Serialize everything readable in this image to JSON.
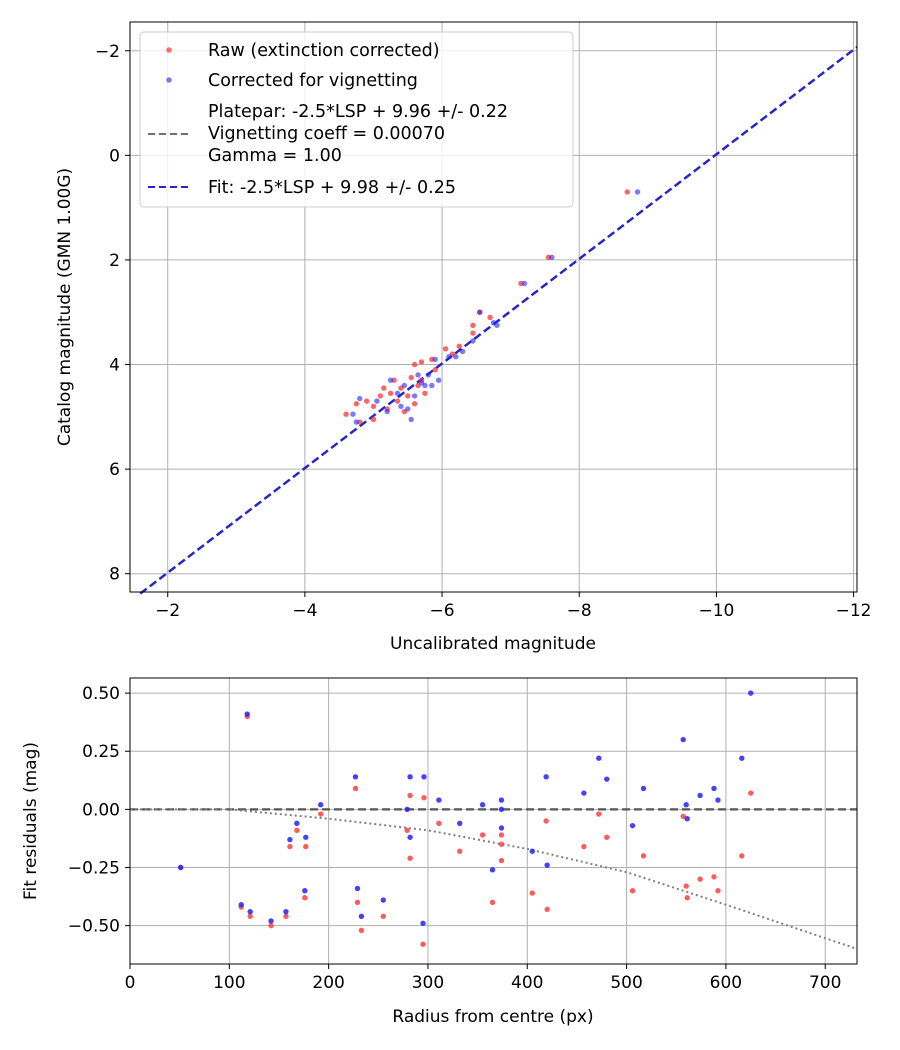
{
  "chart_data": [
    {
      "type": "scatter",
      "xlabel": "Uncalibrated magnitude",
      "ylabel": "Catalog magnitude (GMN 1.00G)",
      "xlim": [
        -1.45,
        -12.05
      ],
      "ylim": [
        8.35,
        -2.55
      ],
      "x_ticks": [
        -2,
        -4,
        -6,
        -8,
        -10,
        -12
      ],
      "x_tick_labels": [
        "−2",
        "−4",
        "−6",
        "−8",
        "−10",
        "−12"
      ],
      "y_ticks": [
        -2,
        0,
        2,
        4,
        6,
        8
      ],
      "y_tick_labels": [
        "−2",
        "0",
        "2",
        "4",
        "6",
        "8"
      ],
      "grid": true,
      "legend_position": "top-left",
      "legend": {
        "raw": "Raw (extinction corrected)",
        "corrected": "Corrected for vignetting",
        "platepar_lines": [
          "Platepar: -2.5*LSP + 9.96 +/- 0.22",
          "Vignetting coeff = 0.00070",
          "Gamma = 1.00"
        ],
        "fit": "Fit: -2.5*LSP + 9.98 +/- 0.25"
      },
      "colors": {
        "raw": "#ff3333",
        "corrected": "#2222ff",
        "fit": "#2525cc",
        "platepar": "#707070"
      },
      "fit_line": {
        "slope": 1.0,
        "intercept": 9.98,
        "x_range": [
          -1.6,
          -12.05
        ]
      },
      "series": [
        {
          "name": "Raw (extinction corrected)",
          "points": [
            [
              -4.6,
              4.95
            ],
            [
              -4.75,
              4.75
            ],
            [
              -4.8,
              5.1
            ],
            [
              -4.9,
              4.7
            ],
            [
              -5.0,
              4.8
            ],
            [
              -5.0,
              5.05
            ],
            [
              -5.1,
              4.6
            ],
            [
              -5.15,
              4.45
            ],
            [
              -5.2,
              4.85
            ],
            [
              -5.25,
              4.55
            ],
            [
              -5.3,
              4.3
            ],
            [
              -5.35,
              4.7
            ],
            [
              -5.4,
              4.45
            ],
            [
              -5.45,
              4.9
            ],
            [
              -5.5,
              4.6
            ],
            [
              -5.55,
              4.25
            ],
            [
              -5.6,
              4.75
            ],
            [
              -5.6,
              4.0
            ],
            [
              -5.65,
              4.4
            ],
            [
              -5.7,
              3.95
            ],
            [
              -5.7,
              4.3
            ],
            [
              -5.75,
              4.55
            ],
            [
              -5.85,
              3.9
            ],
            [
              -5.9,
              4.1
            ],
            [
              -6.05,
              3.7
            ],
            [
              -6.15,
              3.8
            ],
            [
              -6.25,
              3.65
            ],
            [
              -6.45,
              3.4
            ],
            [
              -6.45,
              3.25
            ],
            [
              -6.55,
              3.0
            ],
            [
              -6.7,
              3.1
            ],
            [
              -7.15,
              2.45
            ],
            [
              -7.55,
              1.95
            ],
            [
              -8.7,
              0.7
            ]
          ]
        },
        {
          "name": "Corrected for vignetting",
          "points": [
            [
              -4.7,
              4.95
            ],
            [
              -4.75,
              5.1
            ],
            [
              -4.8,
              4.65
            ],
            [
              -5.05,
              4.7
            ],
            [
              -5.2,
              4.9
            ],
            [
              -5.25,
              4.3
            ],
            [
              -5.35,
              4.55
            ],
            [
              -5.4,
              4.8
            ],
            [
              -5.45,
              4.4
            ],
            [
              -5.5,
              4.85
            ],
            [
              -5.55,
              5.05
            ],
            [
              -5.6,
              4.6
            ],
            [
              -5.65,
              4.2
            ],
            [
              -5.7,
              4.35
            ],
            [
              -5.75,
              4.4
            ],
            [
              -5.8,
              4.2
            ],
            [
              -5.85,
              4.4
            ],
            [
              -5.9,
              3.9
            ],
            [
              -5.95,
              4.3
            ],
            [
              -6.1,
              3.85
            ],
            [
              -6.2,
              3.85
            ],
            [
              -6.3,
              3.75
            ],
            [
              -6.45,
              3.55
            ],
            [
              -6.55,
              3.0
            ],
            [
              -6.75,
              3.2
            ],
            [
              -6.8,
              3.25
            ],
            [
              -7.2,
              2.45
            ],
            [
              -7.6,
              1.95
            ],
            [
              -8.85,
              0.7
            ]
          ]
        }
      ]
    },
    {
      "type": "scatter",
      "xlabel": "Radius from centre (px)",
      "ylabel": "Fit residuals (mag)",
      "xlim": [
        0,
        732
      ],
      "ylim": [
        -0.665,
        0.565
      ],
      "x_ticks": [
        0,
        100,
        200,
        300,
        400,
        500,
        600,
        700
      ],
      "x_tick_labels": [
        "0",
        "100",
        "200",
        "300",
        "400",
        "500",
        "600",
        "700"
      ],
      "y_ticks": [
        -0.5,
        -0.25,
        0,
        0.25,
        0.5
      ],
      "y_tick_labels": [
        "−0.50",
        "−0.25",
        "0.00",
        "0.25",
        "0.50"
      ],
      "grid": true,
      "zero_line": 0,
      "vignetting_curve": {
        "description": "dotted gray curve",
        "points": [
          [
            0,
            0
          ],
          [
            100,
            0.0
          ],
          [
            200,
            -0.04
          ],
          [
            300,
            -0.09
          ],
          [
            400,
            -0.17
          ],
          [
            500,
            -0.27
          ],
          [
            600,
            -0.41
          ],
          [
            732,
            -0.6
          ]
        ]
      },
      "series": [
        {
          "name": "Raw",
          "points": [
            [
              51,
              -0.25
            ],
            [
              112,
              -0.42
            ],
            [
              118,
              0.4
            ],
            [
              121,
              -0.46
            ],
            [
              142,
              -0.5
            ],
            [
              157,
              -0.46
            ],
            [
              161,
              -0.16
            ],
            [
              168,
              -0.09
            ],
            [
              176,
              -0.38
            ],
            [
              177,
              -0.16
            ],
            [
              192,
              -0.02
            ],
            [
              227,
              0.09
            ],
            [
              229,
              -0.4
            ],
            [
              233,
              -0.52
            ],
            [
              255,
              -0.46
            ],
            [
              279,
              -0.09
            ],
            [
              282,
              0.06
            ],
            [
              282,
              -0.21
            ],
            [
              295,
              -0.58
            ],
            [
              296,
              0.05
            ],
            [
              311,
              -0.06
            ],
            [
              332,
              -0.18
            ],
            [
              355,
              -0.11
            ],
            [
              365,
              -0.4
            ],
            [
              374,
              -0.22
            ],
            [
              374,
              -0.15
            ],
            [
              374,
              -0.11
            ],
            [
              405,
              -0.36
            ],
            [
              419,
              -0.05
            ],
            [
              420,
              -0.43
            ],
            [
              457,
              -0.16
            ],
            [
              472,
              -0.02
            ],
            [
              480,
              -0.12
            ],
            [
              506,
              -0.35
            ],
            [
              517,
              -0.2
            ],
            [
              557,
              -0.03
            ],
            [
              560,
              -0.33
            ],
            [
              561,
              -0.38
            ],
            [
              574,
              -0.3
            ],
            [
              588,
              -0.29
            ],
            [
              592,
              -0.35
            ],
            [
              616,
              -0.2
            ],
            [
              625,
              0.07
            ]
          ]
        },
        {
          "name": "Corrected",
          "points": [
            [
              51,
              -0.25
            ],
            [
              112,
              -0.41
            ],
            [
              118,
              0.41
            ],
            [
              121,
              -0.44
            ],
            [
              142,
              -0.48
            ],
            [
              157,
              -0.44
            ],
            [
              161,
              -0.13
            ],
            [
              168,
              -0.06
            ],
            [
              176,
              -0.35
            ],
            [
              177,
              -0.12
            ],
            [
              192,
              0.02
            ],
            [
              227,
              0.14
            ],
            [
              229,
              -0.34
            ],
            [
              233,
              -0.46
            ],
            [
              255,
              -0.39
            ],
            [
              279,
              0.0
            ],
            [
              282,
              0.14
            ],
            [
              282,
              -0.12
            ],
            [
              295,
              -0.49
            ],
            [
              296,
              0.14
            ],
            [
              311,
              0.04
            ],
            [
              332,
              -0.06
            ],
            [
              355,
              0.02
            ],
            [
              365,
              -0.26
            ],
            [
              374,
              0.04
            ],
            [
              374,
              0.0
            ],
            [
              374,
              -0.08
            ],
            [
              405,
              -0.18
            ],
            [
              419,
              0.14
            ],
            [
              420,
              -0.24
            ],
            [
              457,
              0.07
            ],
            [
              472,
              0.22
            ],
            [
              480,
              0.13
            ],
            [
              506,
              -0.07
            ],
            [
              517,
              0.09
            ],
            [
              557,
              0.3
            ],
            [
              560,
              0.02
            ],
            [
              561,
              -0.04
            ],
            [
              574,
              0.06
            ],
            [
              588,
              0.09
            ],
            [
              592,
              0.04
            ],
            [
              616,
              0.22
            ],
            [
              625,
              0.5
            ]
          ]
        }
      ]
    }
  ]
}
